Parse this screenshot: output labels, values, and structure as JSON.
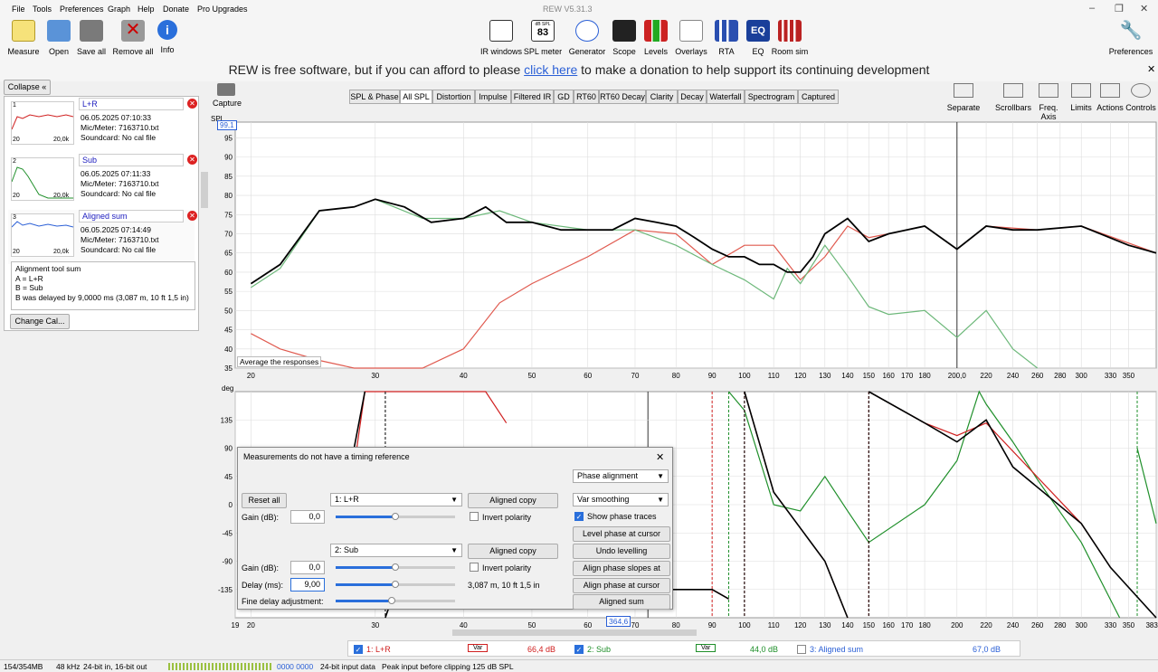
{
  "menu": [
    "File",
    "Tools",
    "Preferences",
    "Graph",
    "Help",
    "Donate",
    "Pro Upgrades"
  ],
  "app_title": "REW V5.31.3",
  "toolbar_left": [
    {
      "label": "Measure",
      "icon": "measure-icon"
    },
    {
      "label": "Open",
      "icon": "folder-icon"
    },
    {
      "label": "Save all",
      "icon": "save-icon"
    },
    {
      "label": "Remove all",
      "icon": "remove-icon"
    },
    {
      "label": "Info",
      "icon": "info-icon"
    }
  ],
  "toolbar_center": [
    {
      "label": "IR windows",
      "icon": "ir-windows-icon"
    },
    {
      "label": "SPL meter",
      "icon": "spl-meter-icon",
      "badge_top": "dB SPL",
      "badge_value": "83"
    },
    {
      "label": "Generator",
      "icon": "generator-icon"
    },
    {
      "label": "Scope",
      "icon": "scope-icon"
    },
    {
      "label": "Levels",
      "icon": "levels-icon"
    },
    {
      "label": "Overlays",
      "icon": "overlays-icon"
    },
    {
      "label": "RTA",
      "icon": "rta-icon"
    },
    {
      "label": "EQ",
      "icon": "eq-icon",
      "badge_value": "EQ"
    },
    {
      "label": "Room sim",
      "icon": "room-sim-icon"
    }
  ],
  "toolbar_right": {
    "label": "Preferences",
    "icon": "wrench-icon"
  },
  "donate": {
    "pre": "REW is free software, but if you can afford to please ",
    "link": "click here",
    "post": " to make a donation to help support its continuing development"
  },
  "left_panel": {
    "collapse": "Collapse",
    "measurements": [
      {
        "num": "1",
        "name": "L+R",
        "date": "06.05.2025 07:10:33",
        "mic": "Mic/Meter: 7163710.txt",
        "card": "Soundcard: No cal file",
        "thumb_xmin": "20",
        "thumb_xmax": "20,0k",
        "color": "#d02020"
      },
      {
        "num": "2",
        "name": "Sub",
        "date": "06.05.2025 07:11:33",
        "mic": "Mic/Meter: 7163710.txt",
        "card": "Soundcard: No cal file",
        "thumb_xmin": "20",
        "thumb_xmax": "20,0k",
        "color": "#1f8f2a"
      },
      {
        "num": "3",
        "name": "Aligned sum",
        "date": "06.05.2025 07:14:49",
        "mic": "Mic/Meter: 7163710.txt",
        "card": "Soundcard: No cal file",
        "thumb_xmin": "20",
        "thumb_xmax": "20,0k",
        "color": "#2a5fd6"
      }
    ],
    "notes": [
      "Alignment tool sum",
      "A = L+R",
      "B = Sub",
      "B was delayed by 9,0000 ms (3,087 m, 10 ft 1,5 in)"
    ],
    "change_cal": "Change Cal..."
  },
  "graph_tabs": [
    "SPL & Phase",
    "All SPL",
    "Distortion",
    "Impulse",
    "Filtered IR",
    "GD",
    "RT60",
    "RT60 Decay",
    "Clarity",
    "Decay",
    "Waterfall",
    "Spectrogram",
    "Captured"
  ],
  "active_tab": "All SPL",
  "capture_label": "Capture",
  "right_tools": [
    "Separate",
    "Scrollbars",
    "Freq. Axis",
    "Limits",
    "Actions",
    "Controls"
  ],
  "spl_plot": {
    "y_unit": "SPL",
    "y_cursor": "99,1",
    "y_ticks": [
      "95",
      "90",
      "85",
      "80",
      "75",
      "70",
      "65",
      "60",
      "55",
      "50",
      "45",
      "40",
      "35"
    ],
    "x_ticks": [
      "20",
      "30",
      "40",
      "50",
      "60",
      "70",
      "80",
      "90",
      "100",
      "110",
      "120",
      "130",
      "140",
      "150",
      "160",
      "170",
      "180",
      "200,0",
      "220",
      "240",
      "260",
      "280",
      "300",
      "330",
      "350"
    ],
    "hint": "Average the responses"
  },
  "phase_plot": {
    "y_unit": "deg",
    "y_ticks": [
      "135",
      "90",
      "45",
      "0",
      "-45",
      "-90",
      "-135"
    ],
    "x_ticks": [
      "19",
      "20",
      "30",
      "40",
      "50",
      "60",
      "70",
      "80",
      "90",
      "100",
      "110",
      "120",
      "130",
      "140",
      "150",
      "160",
      "170",
      "180",
      "200",
      "220",
      "240",
      "260",
      "280",
      "300",
      "330",
      "350",
      "383Hz"
    ],
    "cursor": "364,6"
  },
  "dialog": {
    "title": "Measurements do not have a timing reference",
    "mode": "Phase alignment",
    "smoothing": "Var smoothing",
    "show_phase": "Show phase traces",
    "reset": "Reset all",
    "a_sel": "1: L+R",
    "b_sel": "2: Sub",
    "aligned_copy": "Aligned copy",
    "gain_label": "Gain (dB):",
    "gain_a": "0,0",
    "gain_b": "0,0",
    "invert": "Invert polarity",
    "delay_label": "Delay (ms):",
    "delay": "9,00",
    "delay_info": "3,087 m, 10 ft 1,5 in",
    "fine": "Fine delay adjustment:",
    "btns": [
      "Level phase at cursor",
      "Undo levelling",
      "Align phase slopes at cursor",
      "Align phase at cursor",
      "Aligned sum"
    ]
  },
  "legend": [
    {
      "label": "1: L+R",
      "smooth": "Var",
      "value": "66,4 dB",
      "color": "#d02020",
      "checked": true
    },
    {
      "label": "2: Sub",
      "smooth": "Var",
      "value": "44,0 dB",
      "color": "#1f8f2a",
      "checked": true
    },
    {
      "label": "3: Aligned sum",
      "value": "67,0 dB",
      "color": "#2a5fd6",
      "checked": false
    }
  ],
  "status": {
    "mem": "154/354MB",
    "rate": "48 kHz",
    "bits": "24-bit in, 16-bit out",
    "counter": "0000 0000",
    "input": "24-bit input data",
    "peak": "Peak input before clipping 125 dB SPL"
  },
  "chart_data": [
    {
      "type": "line",
      "ylabel": "SPL",
      "ylim": [
        35,
        99.1
      ],
      "xlim": [
        19,
        383
      ],
      "xscale": "log",
      "series": [
        {
          "name": "Aligned sum",
          "color": "#000000",
          "x": [
            20,
            22,
            25,
            28,
            30,
            33,
            36,
            40,
            43,
            46,
            50,
            55,
            60,
            65,
            70,
            75,
            80,
            85,
            90,
            95,
            100,
            105,
            110,
            115,
            120,
            125,
            130,
            140,
            150,
            160,
            180,
            200,
            220,
            240,
            260,
            300,
            350,
            383
          ],
          "values": [
            57,
            62,
            76,
            77,
            79,
            77,
            73,
            74,
            77,
            73,
            73,
            71,
            71,
            71,
            74,
            73,
            72,
            69,
            66,
            64,
            64,
            62,
            62,
            60,
            60,
            64,
            70,
            74,
            68,
            70,
            72,
            66,
            72,
            71,
            71,
            72,
            67,
            65
          ]
        },
        {
          "name": "L+R",
          "color": "#e05a4f",
          "x": [
            20,
            22,
            25,
            28,
            30,
            35,
            40,
            45,
            50,
            60,
            70,
            80,
            90,
            100,
            110,
            120,
            130,
            140,
            150,
            160,
            180,
            200,
            220,
            260,
            300,
            383
          ],
          "values": [
            44,
            40,
            37,
            35,
            35,
            35,
            40,
            52,
            57,
            64,
            71,
            70,
            62,
            67,
            67,
            58,
            64,
            72,
            69,
            70,
            72,
            66,
            72,
            71,
            72,
            65
          ]
        },
        {
          "name": "Sub",
          "color": "#6db87a",
          "x": [
            20,
            22,
            25,
            28,
            30,
            35,
            40,
            45,
            50,
            60,
            70,
            80,
            90,
            100,
            110,
            115,
            120,
            130,
            140,
            150,
            160,
            180,
            200,
            220,
            240,
            260
          ],
          "values": [
            56,
            61,
            76,
            77,
            79,
            74,
            74,
            76,
            73,
            71,
            71,
            67,
            62,
            58,
            53,
            61,
            57,
            67,
            59,
            51,
            49,
            50,
            43,
            50,
            40,
            35
          ]
        }
      ]
    },
    {
      "type": "line",
      "ylabel": "deg",
      "ylim": [
        -180,
        180
      ],
      "xlim": [
        19,
        383
      ],
      "xscale": "log",
      "series": [
        {
          "name": "Aligned sum phase",
          "color": "#000000",
          "x": [
            28,
            29,
            31,
            32,
            90,
            95,
            100,
            110,
            130,
            140,
            150,
            180,
            200,
            220,
            240,
            300,
            330,
            383
          ],
          "values": [
            90,
            180,
            -180,
            -135,
            -135,
            -150,
            180,
            20,
            -90,
            -180,
            180,
            130,
            100,
            135,
            60,
            -30,
            -100,
            -180
          ]
        },
        {
          "name": "L+R phase",
          "color": "#d02020",
          "x": [
            28,
            29,
            43,
            46,
            90,
            95,
            100,
            110,
            130,
            140,
            150,
            180,
            200,
            220,
            300,
            330
          ],
          "values": [
            60,
            180,
            180,
            130,
            -135,
            -150,
            180,
            20,
            -90,
            -180,
            180,
            130,
            110,
            130,
            -30,
            -100
          ]
        },
        {
          "name": "Sub phase",
          "color": "#1f8f2a",
          "x": [
            90,
            95,
            100,
            110,
            120,
            130,
            140,
            150,
            180,
            200,
            215,
            220,
            240,
            260,
            300,
            340,
            360,
            383
          ],
          "values": [
            -180,
            180,
            150,
            0,
            -10,
            45,
            -10,
            -60,
            0,
            70,
            180,
            160,
            100,
            40,
            -60,
            -180,
            90,
            -30
          ]
        }
      ]
    }
  ]
}
